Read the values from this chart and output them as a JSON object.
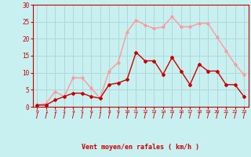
{
  "hours": [
    0,
    1,
    2,
    3,
    4,
    5,
    6,
    7,
    8,
    9,
    10,
    11,
    12,
    13,
    14,
    15,
    16,
    17,
    18,
    19,
    20,
    21,
    22,
    23
  ],
  "wind_avg": [
    0.5,
    0.5,
    2,
    3,
    4,
    4,
    3,
    2.5,
    6.5,
    7,
    8,
    16,
    13.5,
    13.5,
    9.5,
    14.5,
    10.5,
    6.5,
    12.5,
    10.5,
    10.5,
    6.5,
    6.5,
    3
  ],
  "wind_gust": [
    0.5,
    1,
    4.5,
    3,
    8.5,
    8.5,
    5.5,
    2.5,
    10.5,
    13,
    22,
    25.5,
    24,
    23,
    23.5,
    26.5,
    23.5,
    23.5,
    24.5,
    24.5,
    20.5,
    16.5,
    12.5,
    9.5
  ],
  "wind_avg_color": "#cc0000",
  "wind_gust_color": "#ff9999",
  "bg_color": "#c8f0f0",
  "grid_color": "#b0d8d8",
  "xlabel": "Vent moyen/en rafales ( km/h )",
  "xlabel_color": "#cc0000",
  "tick_color": "#cc0000",
  "arrow_color": "#cc0000",
  "ylim": [
    0,
    30
  ],
  "yticks": [
    0,
    5,
    10,
    15,
    20,
    25,
    30
  ],
  "xlim": [
    -0.5,
    23.5
  ]
}
